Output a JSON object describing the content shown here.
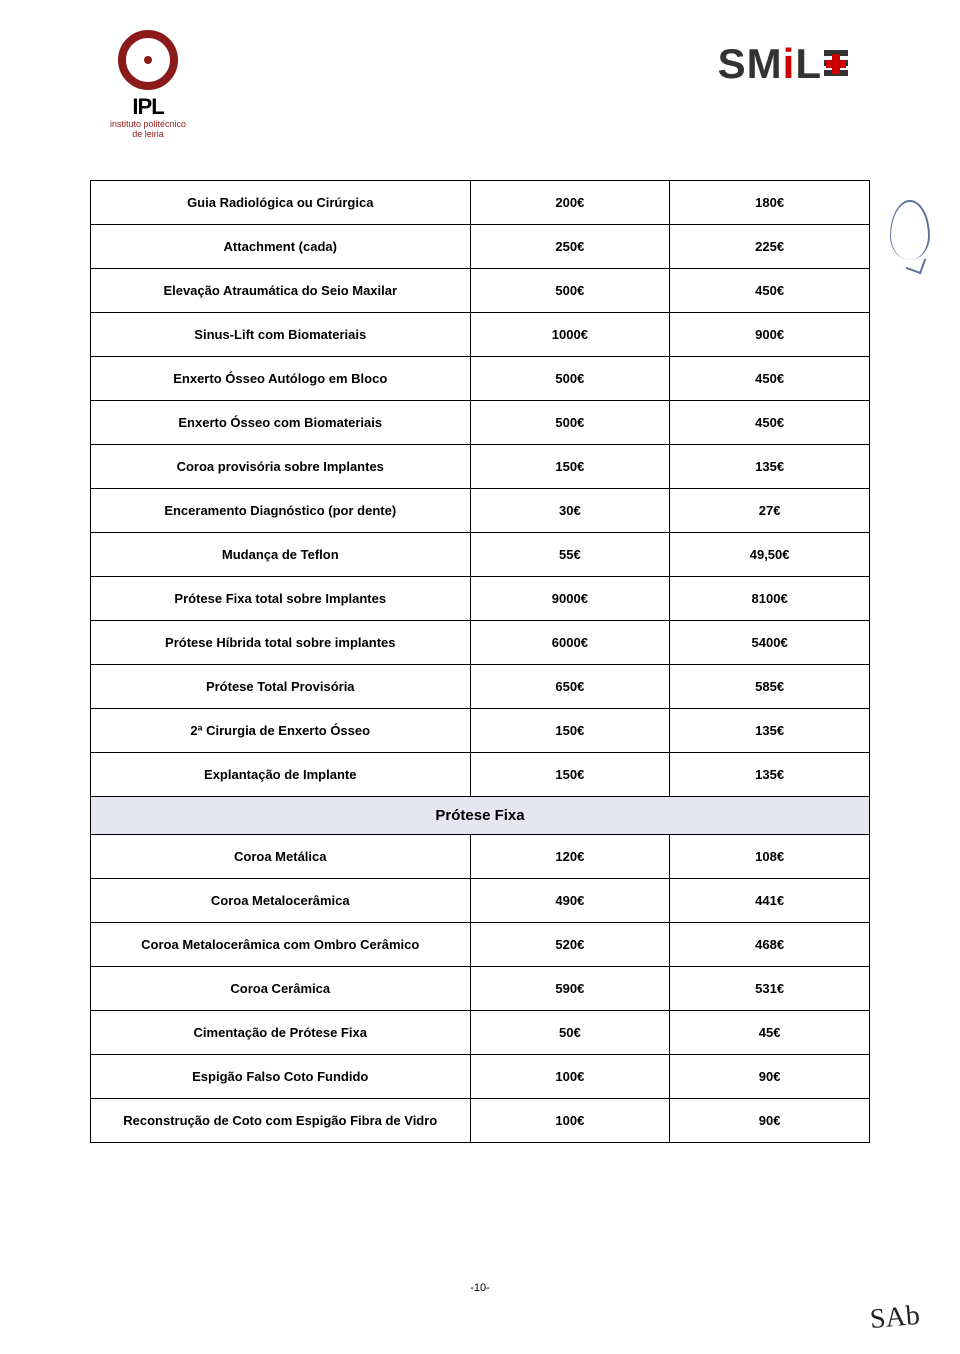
{
  "header": {
    "ipl_name": "IPL",
    "ipl_sub1": "instituto politécnico",
    "ipl_sub2": "de leiria",
    "smile_prefix": "SM",
    "smile_i": "i",
    "smile_suffix": "L",
    "smile_e": "E"
  },
  "colors": {
    "ipl_accent": "#8b1a1a",
    "smile_accent": "#cc0000",
    "section_bg": "#e6e6f0",
    "border": "#000000",
    "text": "#000000"
  },
  "table": {
    "rows_top": [
      {
        "name": "Guia Radiológica ou Cirúrgica",
        "p1": "200€",
        "p2": "180€"
      },
      {
        "name": "Attachment (cada)",
        "p1": "250€",
        "p2": "225€"
      },
      {
        "name": "Elevação Atraumática do Seio Maxilar",
        "p1": "500€",
        "p2": "450€"
      },
      {
        "name": "Sinus-Lift com Biomateriais",
        "p1": "1000€",
        "p2": "900€"
      },
      {
        "name": "Enxerto Ósseo Autólogo em Bloco",
        "p1": "500€",
        "p2": "450€"
      },
      {
        "name": "Enxerto Ósseo com Biomateriais",
        "p1": "500€",
        "p2": "450€"
      },
      {
        "name": "Coroa provisória sobre Implantes",
        "p1": "150€",
        "p2": "135€"
      },
      {
        "name": "Enceramento Diagnóstico (por dente)",
        "p1": "30€",
        "p2": "27€"
      },
      {
        "name": "Mudança de Teflon",
        "p1": "55€",
        "p2": "49,50€"
      },
      {
        "name": "Prótese Fixa total sobre Implantes",
        "p1": "9000€",
        "p2": "8100€"
      },
      {
        "name": "Prótese Híbrida total sobre implantes",
        "p1": "6000€",
        "p2": "5400€"
      },
      {
        "name": "Prótese Total Provisória",
        "p1": "650€",
        "p2": "585€"
      },
      {
        "name": "2ª Cirurgia de Enxerto Ósseo",
        "p1": "150€",
        "p2": "135€"
      },
      {
        "name": "Explantação de Implante",
        "p1": "150€",
        "p2": "135€"
      }
    ],
    "section_title": "Prótese Fixa",
    "rows_bottom": [
      {
        "name": "Coroa Metálica",
        "p1": "120€",
        "p2": "108€"
      },
      {
        "name": "Coroa Metalocerâmica",
        "p1": "490€",
        "p2": "441€"
      },
      {
        "name": "Coroa Metalocerâmica com Ombro Cerâmico",
        "p1": "520€",
        "p2": "468€"
      },
      {
        "name": "Coroa Cerâmica",
        "p1": "590€",
        "p2": "531€"
      },
      {
        "name": "Cimentação de Prótese Fixa",
        "p1": "50€",
        "p2": "45€"
      },
      {
        "name": "Espigão Falso Coto Fundido",
        "p1": "100€",
        "p2": "90€"
      },
      {
        "name": "Reconstrução de Coto com Espigão Fibra de Vidro",
        "p1": "100€",
        "p2": "90€"
      }
    ]
  },
  "footer": {
    "page_number": "-10-",
    "signature": "SAb"
  }
}
